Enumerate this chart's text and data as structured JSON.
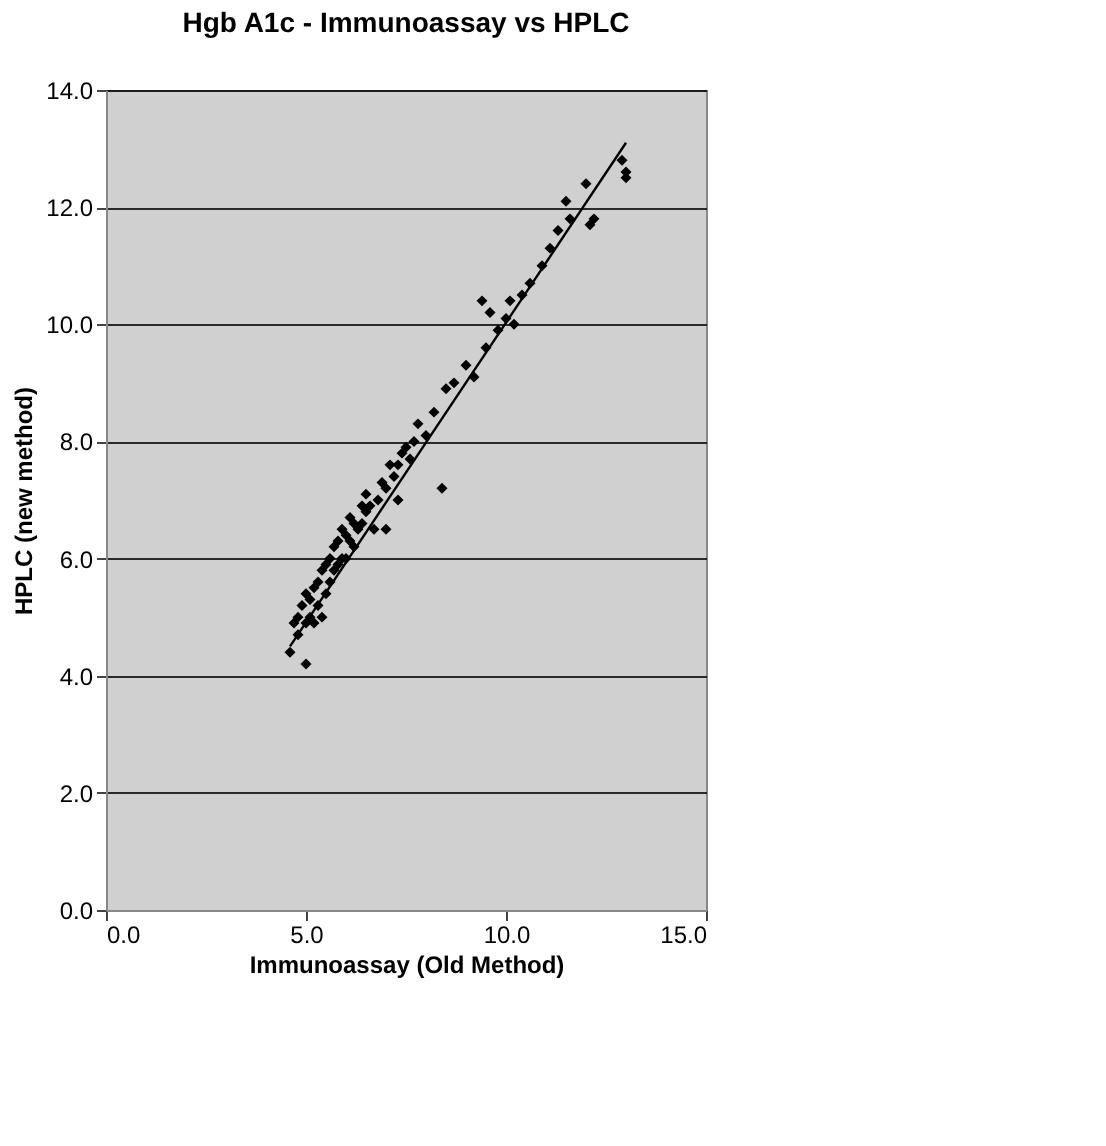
{
  "chart_data": {
    "type": "scatter",
    "title": "Hgb A1c - Immunoassay vs HPLC",
    "xlabel": "Immunoassay (Old Method)",
    "ylabel": "HPLC (new method)",
    "xlim": [
      0,
      15
    ],
    "xticks": [
      {
        "value": 0,
        "label": "0.0"
      },
      {
        "value": 5,
        "label": "5.0"
      },
      {
        "value": 10,
        "label": "10.0"
      },
      {
        "value": 15,
        "label": "15.0"
      }
    ],
    "ylim": [
      0,
      14
    ],
    "yticks": [
      {
        "value": 0,
        "label": "0.0"
      },
      {
        "value": 2,
        "label": "2.0"
      },
      {
        "value": 4,
        "label": "4.0"
      },
      {
        "value": 6,
        "label": "6.0"
      },
      {
        "value": 8,
        "label": "8.0"
      },
      {
        "value": 10,
        "label": "10.0"
      },
      {
        "value": 12,
        "label": "12.0"
      },
      {
        "value": 14,
        "label": "14.0"
      }
    ],
    "grid": "y",
    "series": [
      {
        "color": "#000000",
        "marker": "diamond",
        "x": [
          4.6,
          4.7,
          4.8,
          4.8,
          4.9,
          5.0,
          5.0,
          5.0,
          5.1,
          5.1,
          5.2,
          5.2,
          5.3,
          5.3,
          5.4,
          5.4,
          5.5,
          5.5,
          5.6,
          5.6,
          5.7,
          5.7,
          5.8,
          5.8,
          5.9,
          5.9,
          6.0,
          6.0,
          6.1,
          6.1,
          6.2,
          6.2,
          6.3,
          6.4,
          6.4,
          6.5,
          6.5,
          6.6,
          6.7,
          6.8,
          6.9,
          7.0,
          7.0,
          7.1,
          7.2,
          7.3,
          7.3,
          7.4,
          7.5,
          7.6,
          7.7,
          7.8,
          8.0,
          8.2,
          8.4,
          8.5,
          8.7,
          9.0,
          9.2,
          9.4,
          9.5,
          9.6,
          9.8,
          10.0,
          10.1,
          10.2,
          10.4,
          10.6,
          10.9,
          11.1,
          11.3,
          11.5,
          11.6,
          12.0,
          12.1,
          12.2,
          12.9,
          13.0,
          13.0
        ],
        "values": [
          4.4,
          4.9,
          5.0,
          4.7,
          5.2,
          4.2,
          4.9,
          5.4,
          5.0,
          5.3,
          4.9,
          5.5,
          5.2,
          5.6,
          5.0,
          5.8,
          5.4,
          5.9,
          5.6,
          6.0,
          5.8,
          6.2,
          5.9,
          6.3,
          6.0,
          6.5,
          6.0,
          6.4,
          6.3,
          6.7,
          6.2,
          6.6,
          6.5,
          6.6,
          6.9,
          6.8,
          7.1,
          6.9,
          6.5,
          7.0,
          7.3,
          6.5,
          7.2,
          7.6,
          7.4,
          7.6,
          7.0,
          7.8,
          7.9,
          7.7,
          8.0,
          8.3,
          8.1,
          8.5,
          7.2,
          8.9,
          9.0,
          9.3,
          9.1,
          10.4,
          9.6,
          10.2,
          9.9,
          10.1,
          10.4,
          10.0,
          10.5,
          10.7,
          11.0,
          11.3,
          11.6,
          12.1,
          11.8,
          12.4,
          11.7,
          11.8,
          12.8,
          12.6,
          12.5
        ]
      },
      {
        "type": "line",
        "marker": "none",
        "color": "#000000",
        "x": [
          4.6,
          13.0
        ],
        "values": [
          4.5,
          13.1
        ]
      }
    ]
  }
}
